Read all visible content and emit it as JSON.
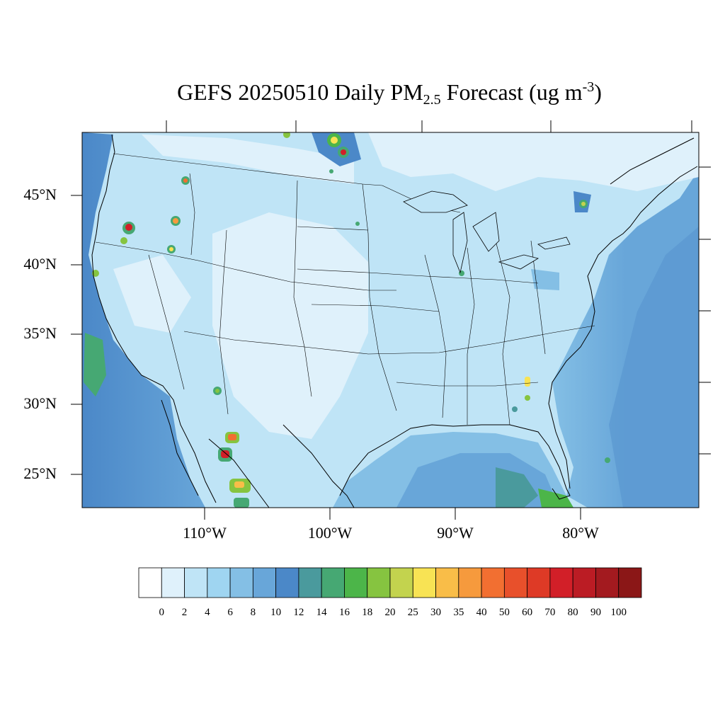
{
  "title": {
    "main": "GEFS 20250510 Daily PM",
    "subscript": "2.5",
    "tail": " Forecast (ug m",
    "superscript": "-3",
    "close": ")"
  },
  "lat_labels": [
    "45°N",
    "40°N",
    "35°N",
    "30°N",
    "25°N"
  ],
  "lon_labels": [
    "110°W",
    "100°W",
    "90°W",
    "80°W"
  ],
  "colorbar": {
    "labels": [
      "0",
      "2",
      "4",
      "6",
      "8",
      "10",
      "12",
      "14",
      "16",
      "18",
      "20",
      "25",
      "30",
      "35",
      "40",
      "50",
      "60",
      "70",
      "80",
      "90",
      "100"
    ],
    "colors": [
      "#ffffff",
      "#dff1fb",
      "#bfe4f6",
      "#9fd5f1",
      "#84bfe5",
      "#68a6d9",
      "#4b88c8",
      "#4a9a9d",
      "#46a873",
      "#4cb549",
      "#86c440",
      "#c3d34e",
      "#f8e354",
      "#f9bd48",
      "#f69a3d",
      "#f26f31",
      "#e8502b",
      "#de3a26",
      "#d21f28",
      "#bb1c24",
      "#a31a1f",
      "#8b1717"
    ]
  }
}
